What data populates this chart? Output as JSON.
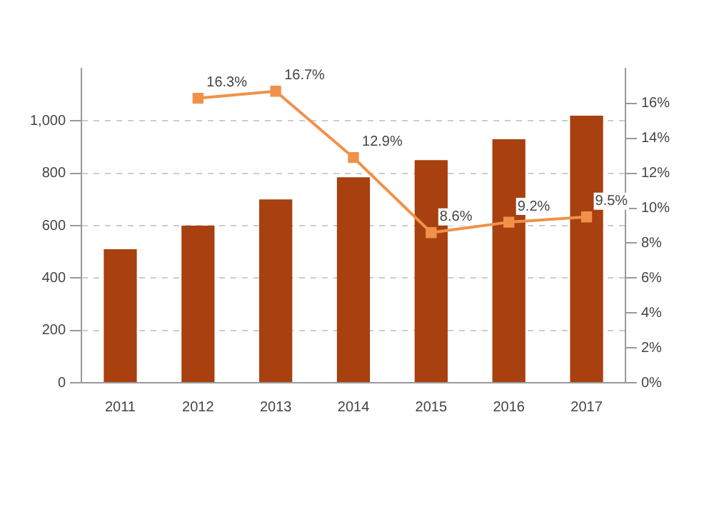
{
  "chart_data": {
    "type": "bar",
    "categories": [
      "2011",
      "2012",
      "2013",
      "2014",
      "2015",
      "2016",
      "2017"
    ],
    "series": [
      {
        "color": "#a8400f",
        "values": [
          510,
          600,
          700,
          785,
          850,
          930,
          1020
        ]
      },
      {
        "type": "line",
        "axis": "y2",
        "color": "#f0914a",
        "marker": "square",
        "values": [
          null,
          16.3,
          16.7,
          12.9,
          8.6,
          9.2,
          9.5
        ],
        "value_labels": [
          null,
          "16.3%",
          "16.7%",
          "12.9%",
          "8.6%",
          "9.2%",
          "9.5%"
        ]
      }
    ],
    "ylim": [
      0,
      1200
    ],
    "yticks": [
      0,
      200,
      400,
      600,
      800,
      {
        "value": 1000,
        "label": "1,000"
      }
    ],
    "y2lim": [
      0,
      18
    ],
    "y2ticks": [
      {
        "value": 0,
        "label": "0%"
      },
      {
        "value": 2,
        "label": "2%"
      },
      {
        "value": 4,
        "label": "4%"
      },
      {
        "value": 6,
        "label": "6%"
      },
      {
        "value": 8,
        "label": "8%"
      },
      {
        "value": 10,
        "label": "10%"
      },
      {
        "value": 12,
        "label": "12%"
      },
      {
        "value": 14,
        "label": "14%"
      },
      {
        "value": 16,
        "label": "16%"
      }
    ],
    "grid": "y",
    "legend": false
  }
}
